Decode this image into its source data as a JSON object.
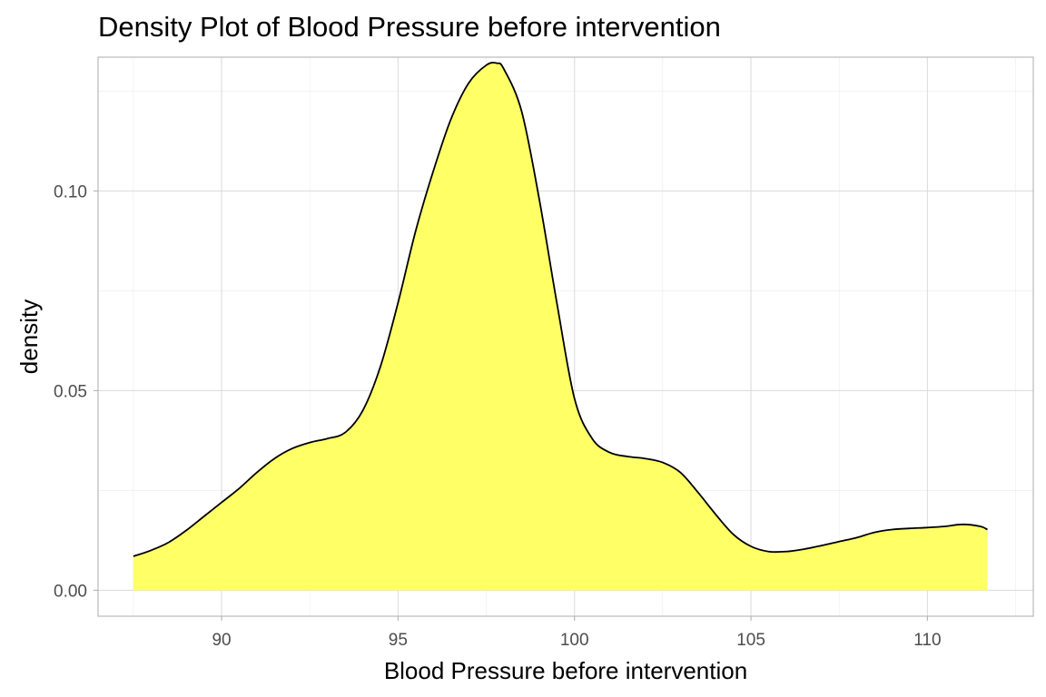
{
  "chart_data": {
    "type": "area",
    "title": "Density Plot of Blood Pressure before  intervention",
    "xlabel": "Blood Pressure before  intervention",
    "ylabel": "density",
    "xlim": [
      86.5,
      113.0
    ],
    "ylim": [
      -0.0065,
      0.1335
    ],
    "x_ticks": [
      90,
      95,
      100,
      105,
      110
    ],
    "x_tick_labels": [
      "90",
      "95",
      "100",
      "105",
      "110"
    ],
    "y_ticks": [
      0.0,
      0.05,
      0.1
    ],
    "y_tick_labels": [
      "0.00",
      "0.05",
      "0.10"
    ],
    "grid": true,
    "legend": "none",
    "fill_color": "#ffff66",
    "line_color": "#000000",
    "series": [
      {
        "x": [
          87.5,
          88.0,
          88.5,
          89.0,
          89.5,
          90.0,
          90.5,
          91.0,
          91.5,
          92.0,
          92.5,
          93.0,
          93.5,
          94.0,
          94.5,
          95.0,
          95.5,
          96.0,
          96.5,
          97.0,
          97.5,
          97.8,
          98.0,
          98.5,
          99.0,
          99.5,
          100.0,
          100.5,
          101.0,
          101.5,
          102.0,
          102.5,
          103.0,
          103.5,
          104.0,
          104.5,
          105.0,
          105.5,
          106.0,
          106.5,
          107.0,
          107.5,
          108.0,
          108.5,
          109.0,
          109.5,
          110.0,
          110.5,
          111.0,
          111.5,
          111.7
        ],
        "y": [
          0.0085,
          0.01,
          0.012,
          0.015,
          0.0185,
          0.022,
          0.0255,
          0.0295,
          0.033,
          0.0355,
          0.037,
          0.038,
          0.0395,
          0.045,
          0.056,
          0.072,
          0.09,
          0.105,
          0.118,
          0.127,
          0.1315,
          0.132,
          0.1305,
          0.12,
          0.098,
          0.072,
          0.048,
          0.038,
          0.0345,
          0.0335,
          0.033,
          0.032,
          0.0295,
          0.0245,
          0.019,
          0.014,
          0.011,
          0.0097,
          0.0097,
          0.0103,
          0.0112,
          0.0122,
          0.0132,
          0.0145,
          0.0152,
          0.0155,
          0.0157,
          0.016,
          0.0165,
          0.016,
          0.0152
        ]
      }
    ]
  }
}
